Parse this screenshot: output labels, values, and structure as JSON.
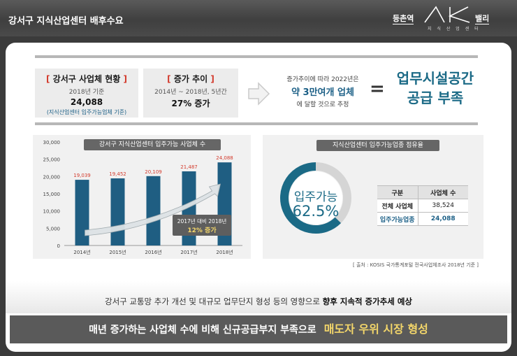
{
  "header": {
    "title": "강서구 지식산업센터 배후수요",
    "logo_left": "등촌역",
    "logo_right": "밸리",
    "logo_sub": "지 식 산 업 센 터"
  },
  "summary": {
    "box1": {
      "title": "강서구 사업체 현황",
      "line1": "2018년 기준",
      "value": "24,088",
      "note": "(지식산업센터 입주가능업체 기준)"
    },
    "box2": {
      "title": "증가 추이",
      "line1": "2014년 ~ 2018년, 5년간",
      "value": "27% 증가"
    },
    "middle": {
      "line1": "증가추이에 따라 2022년은",
      "emphasis": "약 3만여개 업체",
      "line3": "에 달할 것으로 추정"
    },
    "equals": "=",
    "headline_1": "업무시설공간",
    "headline_2": "공급 부족"
  },
  "bar_chart": {
    "title": "강서구 지식산업센터 입주가능 사업체 수",
    "annotation_1": "2017년 대비 2018년",
    "annotation_2": "12% 증가"
  },
  "chart_data": {
    "type": "bar",
    "categories": [
      "2014년",
      "2015년",
      "2016년",
      "2017년",
      "2018년"
    ],
    "values": [
      19039,
      19452,
      20109,
      21487,
      24088
    ],
    "value_labels": [
      "19,039",
      "19,452",
      "20,109",
      "21,487",
      "24,088"
    ],
    "yticks": [
      "0",
      "5,000",
      "10,000",
      "15,000",
      "20,000",
      "25,000",
      "30,000"
    ],
    "ylim": [
      0,
      30000
    ],
    "title": "강서구 지식산업센터 입주가능 사업체 수",
    "colors": {
      "bar": "#1f5e82",
      "label": "#d33a2c"
    }
  },
  "pie": {
    "title": "지식산업센터 입주가능업종 점유율",
    "label": "입주가능",
    "percent_text": "62.5%",
    "share": 0.625,
    "table": {
      "headers": [
        "구분",
        "사업체 수"
      ],
      "rows": [
        [
          "전체 사업체",
          "38,524"
        ],
        [
          "입주가능업종",
          "24,088"
        ]
      ]
    },
    "source": "[ 출처 : KOSIS 국가통계포털 전국사업체조사 2018년 기준 ]"
  },
  "bottom": {
    "message_prefix": "강서구 교통망 추가 개선 및 대규모 업무단지 형성 등의 영향으로",
    "message_bold": "향후 지속적 증가추세 예상",
    "banner_text": "매년 증가하는 사업체 수에 비해 신규공급부지 부족으로",
    "banner_highlight": "매도자 우위 시장 형성"
  },
  "colors": {
    "accent_blue": "#1b6a86",
    "accent_red": "#d33a2c",
    "highlight_yellow": "#f3d66a"
  }
}
